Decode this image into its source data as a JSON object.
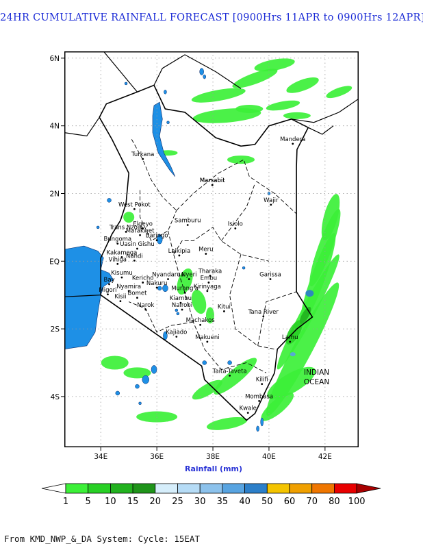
{
  "title": "24HR CUMULATIVE RAINFALL FORECAST [0900Hrs 11APR to 0900Hrs 12APR]",
  "axis": {
    "xlabel": "Rainfall (mm)",
    "lon_ticks": [
      "34E",
      "36E",
      "38E",
      "40E",
      "42E"
    ],
    "lat_ticks": [
      "6N",
      "4N",
      "2N",
      "EQ",
      "2S",
      "4S"
    ]
  },
  "map_extent": {
    "lon": [
      32.7,
      43.2
    ],
    "lat": [
      -5.5,
      6.2
    ]
  },
  "places": [
    {
      "name": "Turkana",
      "lon": 35.5,
      "lat": 3.1
    },
    {
      "name": "Marsabit",
      "lon": 37.98,
      "lat": 2.33
    },
    {
      "name": "Mandera",
      "lon": 40.85,
      "lat": 3.55
    },
    {
      "name": "Wajir",
      "lon": 40.07,
      "lat": 1.75
    },
    {
      "name": "West Pokot",
      "lon": 35.2,
      "lat": 1.62
    },
    {
      "name": "Samburu",
      "lon": 37.1,
      "lat": 1.15
    },
    {
      "name": "Isiolo",
      "lon": 38.8,
      "lat": 1.05
    },
    {
      "name": "Marsabit",
      "lon": 37.98,
      "lat": 2.33
    },
    {
      "name": "Elgeyo",
      "lon": 35.5,
      "lat": 1.05
    },
    {
      "name": "Marakwet",
      "lon": 35.4,
      "lat": 0.85
    },
    {
      "name": "Trans Nzoia",
      "lon": 34.9,
      "lat": 0.95
    },
    {
      "name": "Baringo",
      "lon": 36.0,
      "lat": 0.7
    },
    {
      "name": "Bungoma",
      "lon": 34.6,
      "lat": 0.6
    },
    {
      "name": "Uasin Gishu",
      "lon": 35.3,
      "lat": 0.45
    },
    {
      "name": "Laikipia",
      "lon": 36.8,
      "lat": 0.25
    },
    {
      "name": "Meru",
      "lon": 37.75,
      "lat": 0.3
    },
    {
      "name": "Kakamega",
      "lon": 34.75,
      "lat": 0.2
    },
    {
      "name": "Nandi",
      "lon": 35.2,
      "lat": 0.1
    },
    {
      "name": "Vihiga",
      "lon": 34.6,
      "lat": 0.0
    },
    {
      "name": "Kisumu",
      "lon": 34.75,
      "lat": -0.4
    },
    {
      "name": "Nyandarua",
      "lon": 36.4,
      "lat": -0.45
    },
    {
      "name": "Nyeri",
      "lon": 37.15,
      "lat": -0.45
    },
    {
      "name": "Tharaka",
      "lon": 37.9,
      "lat": -0.35
    },
    {
      "name": "Embu",
      "lon": 37.85,
      "lat": -0.55
    },
    {
      "name": "Garissa",
      "lon": 40.05,
      "lat": -0.45
    },
    {
      "name": "Bay",
      "lon": 34.3,
      "lat": -0.6
    },
    {
      "name": "Kericho",
      "lon": 35.5,
      "lat": -0.55
    },
    {
      "name": "Nakuru",
      "lon": 36.0,
      "lat": -0.7
    },
    {
      "name": "Nyamira",
      "lon": 35.0,
      "lat": -0.8
    },
    {
      "name": "Migori",
      "lon": 34.25,
      "lat": -0.9
    },
    {
      "name": "Bomet",
      "lon": 35.3,
      "lat": -1.0
    },
    {
      "name": "Murang'a",
      "lon": 37.0,
      "lat": -0.85
    },
    {
      "name": "Kirinyaga",
      "lon": 37.8,
      "lat": -0.8
    },
    {
      "name": "Kisii",
      "lon": 34.7,
      "lat": -1.1
    },
    {
      "name": "Kiambu",
      "lon": 36.85,
      "lat": -1.15
    },
    {
      "name": "Nairobi",
      "lon": 36.9,
      "lat": -1.35
    },
    {
      "name": "Narok",
      "lon": 35.6,
      "lat": -1.35
    },
    {
      "name": "Kitui",
      "lon": 38.4,
      "lat": -1.4
    },
    {
      "name": "Tana River",
      "lon": 39.8,
      "lat": -1.55
    },
    {
      "name": "Machakos",
      "lon": 37.55,
      "lat": -1.8
    },
    {
      "name": "Kajiado",
      "lon": 36.7,
      "lat": -2.15
    },
    {
      "name": "Makueni",
      "lon": 37.8,
      "lat": -2.3
    },
    {
      "name": "Lamu",
      "lon": 40.75,
      "lat": -2.3
    },
    {
      "name": "Taita-Taveta",
      "lon": 38.6,
      "lat": -3.3
    },
    {
      "name": "Kilifi",
      "lon": 39.75,
      "lat": -3.55
    },
    {
      "name": "Mombasa",
      "lon": 39.65,
      "lat": -4.05
    },
    {
      "name": "Kwale",
      "lon": 39.25,
      "lat": -4.4
    }
  ],
  "ocean_label": [
    "INDIAN",
    "OCEAN"
  ],
  "colorbar": {
    "labels": [
      "1",
      "5",
      "10",
      "15",
      "20",
      "25",
      "30",
      "35",
      "40",
      "50",
      "60",
      "70",
      "80",
      "100"
    ],
    "colors": [
      "#3cf038",
      "#28d025",
      "#22b21f",
      "#1f941a",
      "#d6eefb",
      "#b6dcf6",
      "#8cc2ec",
      "#58a4e1",
      "#2c7fc9",
      "#f4c400",
      "#f0a000",
      "#ef7600",
      "#e80000",
      "#a80000"
    ]
  },
  "footer": "From KMD_NWP_&_DA System: Cycle: 15EAT"
}
